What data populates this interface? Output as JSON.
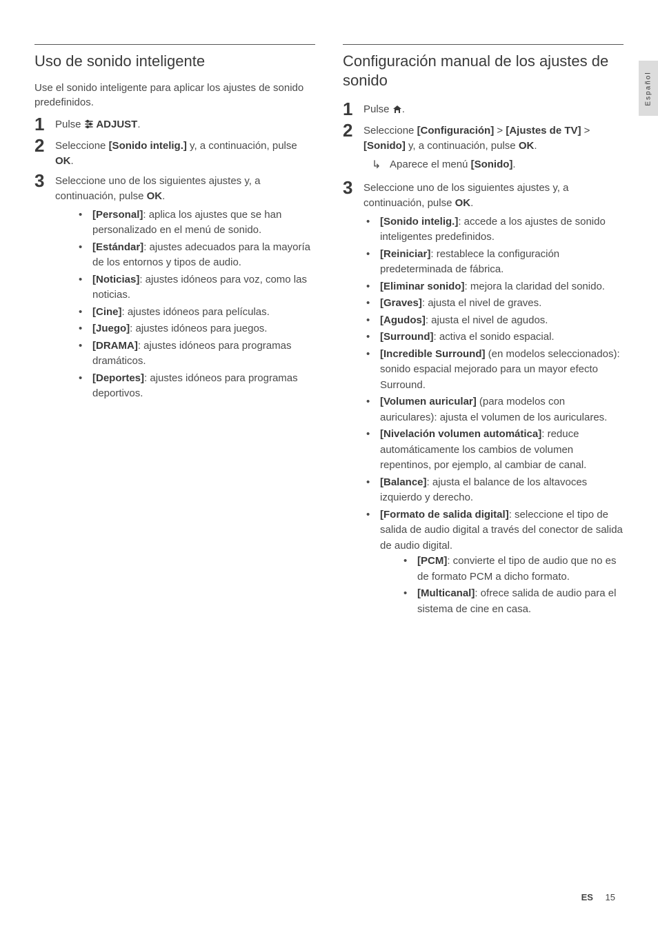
{
  "sideTab": "Español",
  "footer": {
    "lang": "ES",
    "page": "15"
  },
  "left": {
    "heading": "Uso de sonido inteligente",
    "intro": "Use el sonido inteligente para aplicar los ajustes de sonido predefinidos.",
    "steps": [
      {
        "num": "1",
        "pre": "Pulse ",
        "icon": "adjust",
        "bold1": " ADJUST",
        "post": "."
      },
      {
        "num": "2",
        "pre": "Seleccione ",
        "bold1": "[Sonido intelig.]",
        "post": " y, a continuación, pulse ",
        "bold2": "OK",
        "post2": "."
      },
      {
        "num": "3",
        "pre": "Seleccione uno de los siguientes ajustes y, a continuación, pulse ",
        "bold1": "OK",
        "post": "."
      }
    ],
    "bullets": [
      {
        "b": "[Personal]",
        "t": ": aplica los ajustes que se han personalizado en el menú de sonido."
      },
      {
        "b": "[Estándar]",
        "t": ": ajustes adecuados para la mayoría de los entornos y tipos de audio."
      },
      {
        "b": "[Noticias]",
        "t": ": ajustes idóneos para voz, como las noticias."
      },
      {
        "b": "[Cine]",
        "t": ": ajustes idóneos para películas."
      },
      {
        "b": "[Juego]",
        "t": ": ajustes idóneos para juegos."
      },
      {
        "b": "[DRAMA]",
        "t": ": ajustes idóneos para programas dramáticos."
      },
      {
        "b": "[Deportes]",
        "t": ": ajustes idóneos para programas deportivos."
      }
    ]
  },
  "right": {
    "heading": "Configuración manual de los ajustes de sonido",
    "steps": [
      {
        "num": "1",
        "pre": "Pulse ",
        "icon": "home",
        "post": "."
      },
      {
        "num": "2",
        "pre": "Seleccione ",
        "bold1": "[Configuración]",
        "mid1": " > ",
        "bold2": "[Ajustes de TV]",
        "mid2": " > ",
        "bold3": "[Sonido]",
        "post": " y, a continuación, pulse ",
        "bold4": "OK",
        "post2": ".",
        "arrow": {
          "pre": "Aparece el menú ",
          "bold": "[Sonido]",
          "post": "."
        }
      },
      {
        "num": "3",
        "pre": "Seleccione uno de los siguientes ajustes y, a continuación, pulse ",
        "bold1": "OK",
        "post": "."
      }
    ],
    "bullets": [
      {
        "b": "[Sonido intelig.]",
        "t": ": accede a los ajustes de sonido inteligentes predefinidos."
      },
      {
        "b": "[Reiniciar]",
        "t": ": restablece la configuración predeterminada de fábrica."
      },
      {
        "b": "[Eliminar sonido]",
        "t": ": mejora la claridad del sonido."
      },
      {
        "b": "[Graves]",
        "t": ": ajusta el nivel de graves."
      },
      {
        "b": "[Agudos]",
        "t": ": ajusta el nivel de agudos."
      },
      {
        "b": "[Surround]",
        "t": ": activa el sonido espacial."
      },
      {
        "b": "[Incredible Surround]",
        "t": " (en modelos seleccionados): sonido espacial mejorado para un mayor efecto Surround."
      },
      {
        "b": "[Volumen auricular]",
        "t": " (para modelos con auriculares): ajusta el volumen de los auriculares."
      },
      {
        "b": "[Nivelación volumen automática]",
        "t": ": reduce automáticamente los cambios de volumen repentinos, por ejemplo, al cambiar de canal."
      },
      {
        "b": "[Balance]",
        "t": ": ajusta el balance de los altavoces izquierdo y derecho."
      },
      {
        "b": "[Formato de salida digital]",
        "t": ": seleccione el tipo de salida de audio digital a través del conector de salida de audio digital.",
        "nested": [
          {
            "b": "[PCM]",
            "t": ": convierte el tipo de audio que no es de formato PCM a dicho formato."
          },
          {
            "b": "[Multicanal]",
            "t": ": ofrece salida de audio para el sistema de cine en casa."
          }
        ]
      }
    ]
  }
}
